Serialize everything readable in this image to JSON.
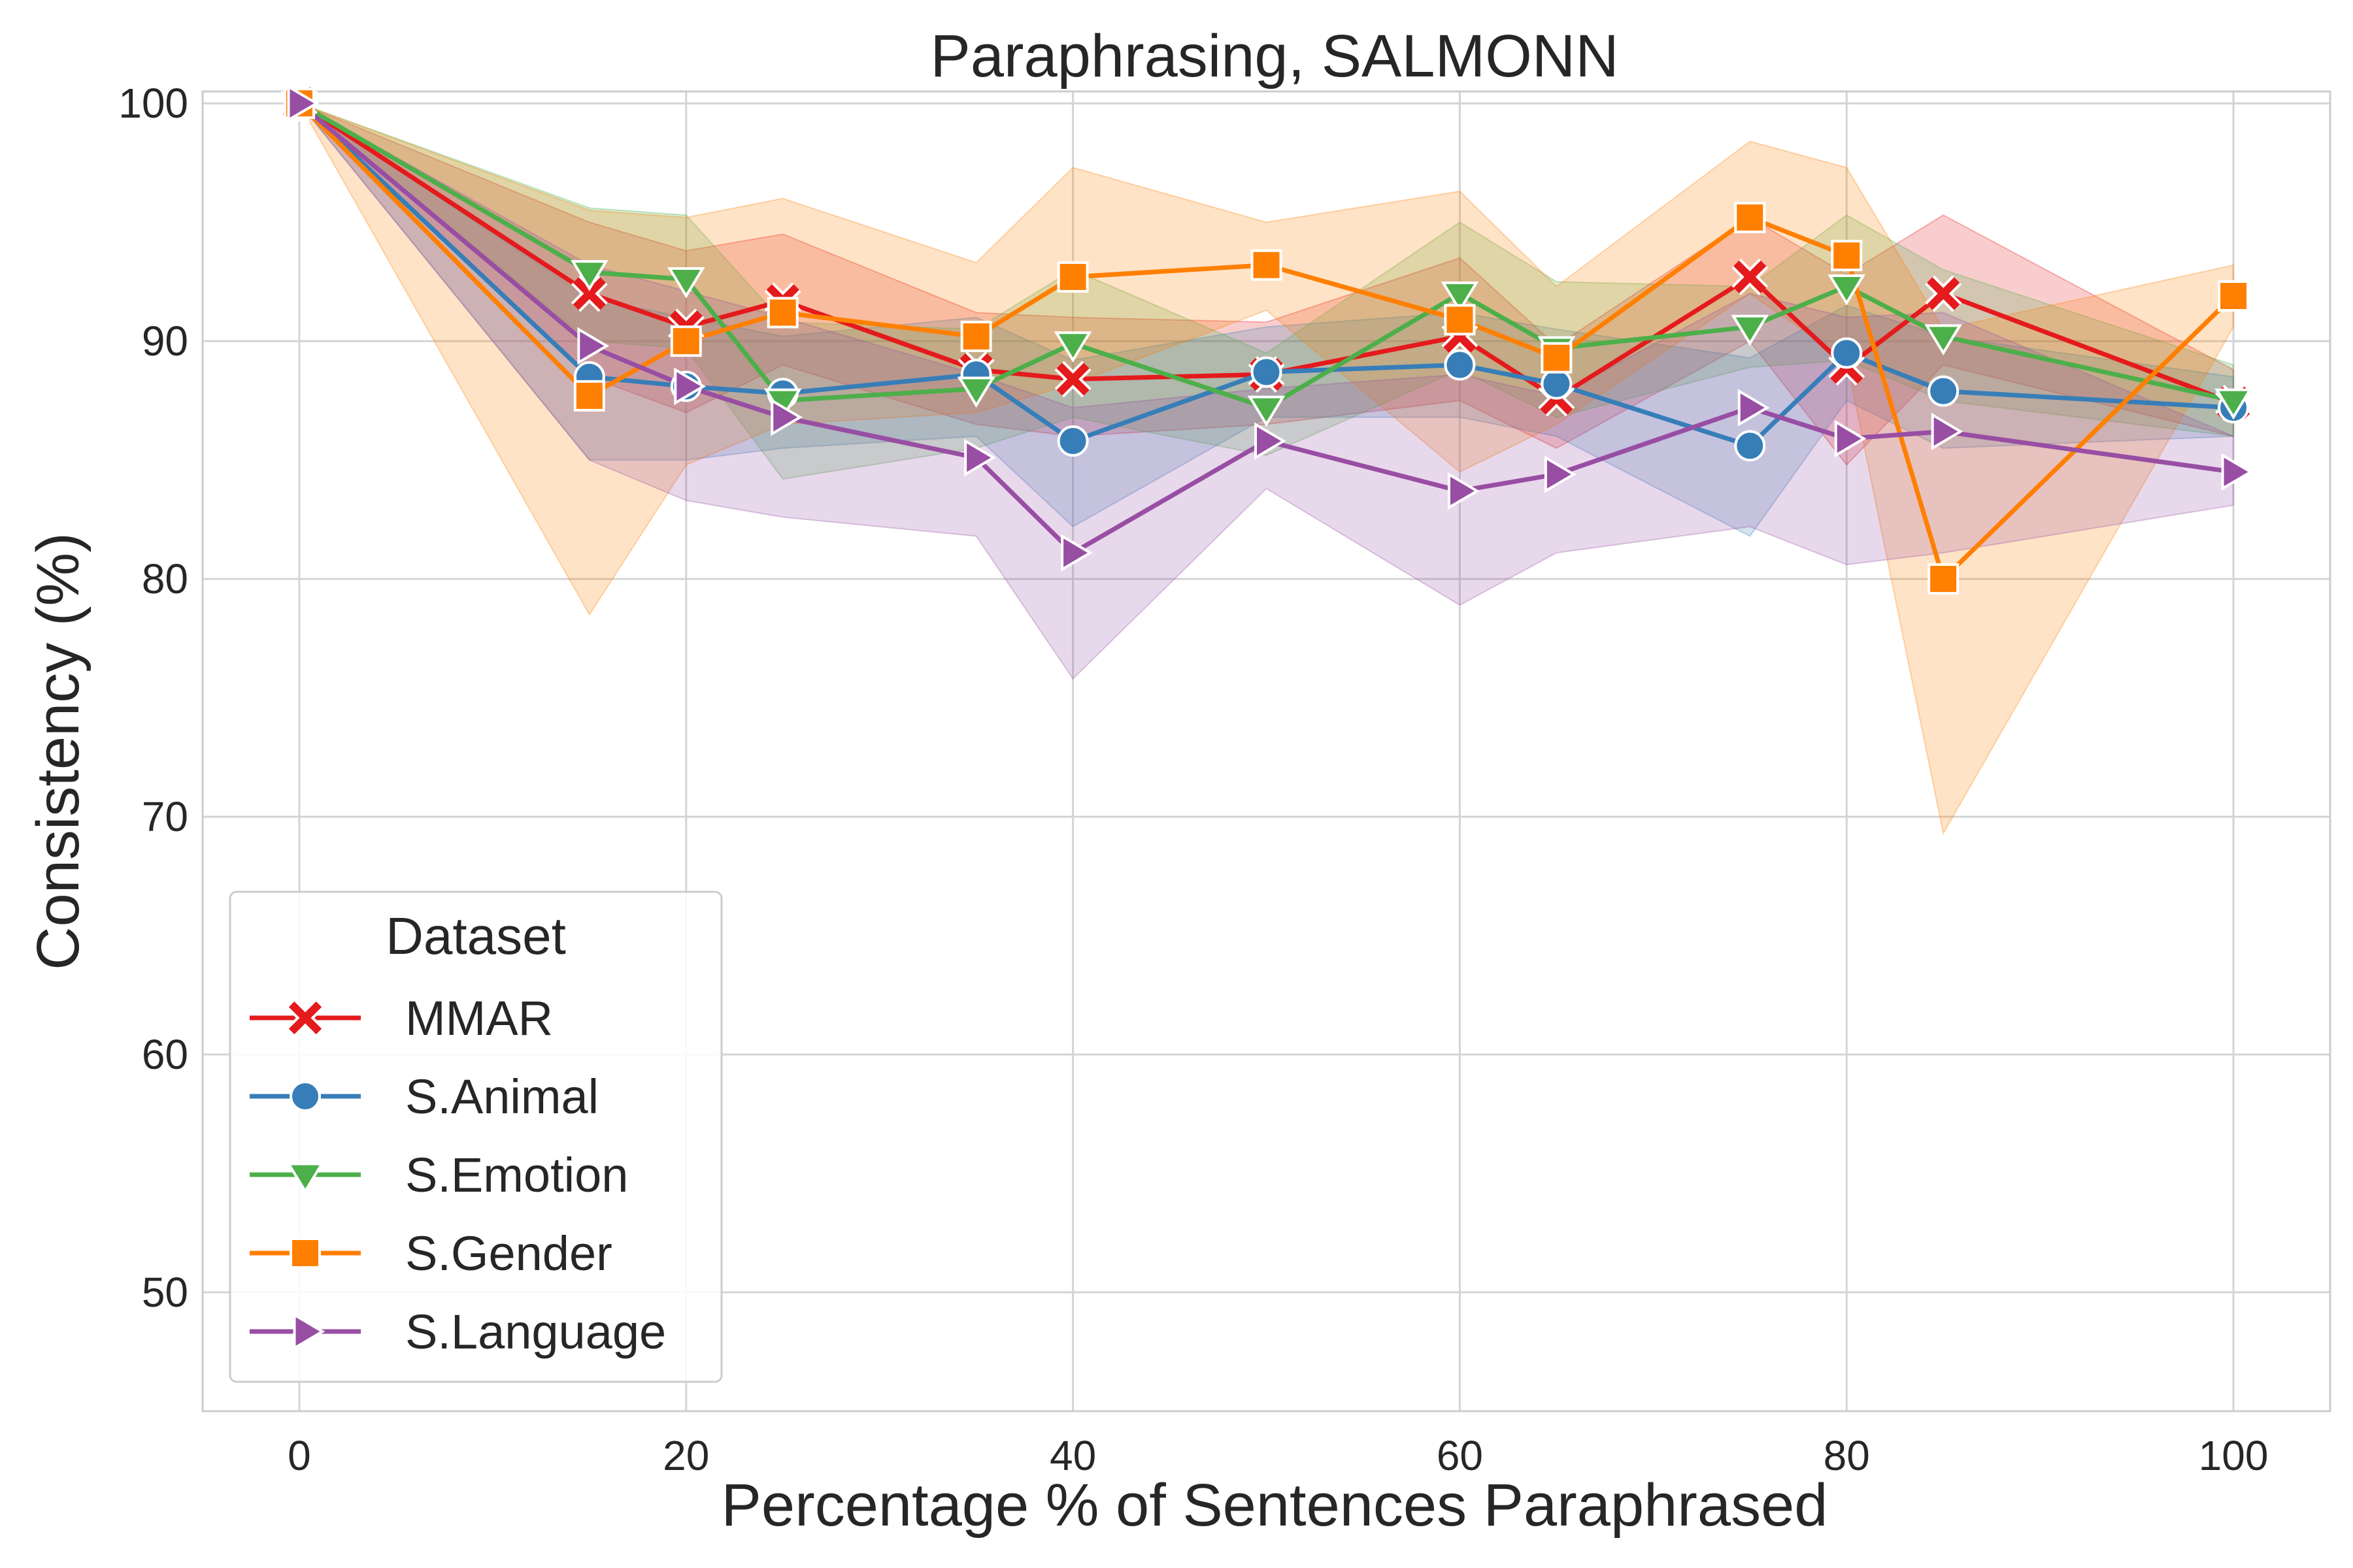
{
  "chart_data": {
    "type": "line",
    "title": "Paraphrasing, SALMONN",
    "xlabel": "Percentage % of Sentences Paraphrased",
    "ylabel": "Consistency (%)",
    "xlim": [
      -5,
      105
    ],
    "ylim": [
      45,
      100.5
    ],
    "xticks": [
      0,
      20,
      40,
      60,
      80,
      100
    ],
    "yticks": [
      50,
      60,
      70,
      80,
      90,
      100
    ],
    "grid": true,
    "legend": {
      "title": "Dataset",
      "placement": "lower-left"
    },
    "series": [
      {
        "name": "MMAR",
        "color": "#e41a1c",
        "marker": "x",
        "x": [
          0,
          15,
          20,
          25,
          35,
          40,
          50,
          60,
          65,
          75,
          80,
          85,
          100
        ],
        "y": [
          100,
          92.0,
          90.6,
          91.7,
          88.8,
          88.4,
          88.6,
          90.2,
          87.6,
          92.7,
          88.9,
          92.0,
          87.4
        ],
        "lower": [
          100,
          88.5,
          87.0,
          89.0,
          86.5,
          86.0,
          86.5,
          87.5,
          85.5,
          90.0,
          84.8,
          89.0,
          86.0
        ],
        "upper": [
          100,
          95.0,
          93.8,
          94.5,
          91.2,
          91.0,
          90.8,
          93.5,
          89.8,
          95.2,
          92.8,
          95.3,
          88.8
        ]
      },
      {
        "name": "S.Animal",
        "color": "#377eb8",
        "marker": "o",
        "x": [
          0,
          15,
          20,
          25,
          35,
          40,
          50,
          60,
          65,
          75,
          80,
          85,
          100
        ],
        "y": [
          100,
          88.5,
          88.1,
          87.8,
          88.6,
          85.8,
          88.7,
          89.0,
          88.2,
          85.6,
          89.5,
          87.9,
          87.2
        ],
        "lower": [
          100,
          85.0,
          85.0,
          85.5,
          86.0,
          82.2,
          86.8,
          86.8,
          86.0,
          81.8,
          87.5,
          85.5,
          86.0
        ],
        "upper": [
          100,
          91.8,
          91.0,
          90.2,
          91.0,
          89.2,
          90.6,
          91.2,
          90.5,
          89.3,
          91.5,
          90.2,
          88.5
        ]
      },
      {
        "name": "S.Emotion",
        "color": "#4daf4a",
        "marker": "v",
        "x": [
          0,
          15,
          20,
          25,
          35,
          40,
          50,
          60,
          65,
          75,
          80,
          85,
          100
        ],
        "y": [
          100,
          92.9,
          92.6,
          87.5,
          88.0,
          89.9,
          87.2,
          92.0,
          89.7,
          90.6,
          92.3,
          90.2,
          87.5
        ],
        "lower": [
          100,
          90.0,
          89.7,
          84.2,
          85.5,
          86.8,
          85.2,
          88.8,
          86.8,
          88.9,
          89.2,
          87.5,
          86.0
        ],
        "upper": [
          100,
          95.6,
          95.3,
          90.8,
          90.5,
          93.0,
          89.5,
          95.0,
          92.5,
          92.3,
          95.3,
          93.0,
          89.0
        ]
      },
      {
        "name": "S.Gender",
        "color": "#ff7f00",
        "marker": "s",
        "x": [
          0,
          15,
          20,
          25,
          35,
          40,
          50,
          60,
          65,
          75,
          80,
          85,
          100
        ],
        "y": [
          100,
          87.7,
          90.0,
          91.2,
          90.2,
          92.7,
          93.2,
          90.9,
          89.3,
          95.2,
          93.6,
          80.0,
          91.9
        ],
        "lower": [
          100,
          78.5,
          84.8,
          86.5,
          87.0,
          88.2,
          91.3,
          84.5,
          86.5,
          92.0,
          89.2,
          69.3,
          90.6
        ],
        "upper": [
          100,
          95.5,
          95.2,
          96.0,
          93.3,
          97.3,
          95.0,
          96.3,
          92.3,
          98.4,
          97.3,
          90.5,
          93.2
        ]
      },
      {
        "name": "S.Language",
        "color": "#984ea3",
        "marker": ">",
        "x": [
          0,
          15,
          20,
          25,
          35,
          40,
          50,
          60,
          65,
          75,
          80,
          85,
          100
        ],
        "y": [
          100,
          89.8,
          88.1,
          86.8,
          85.1,
          81.1,
          85.8,
          83.7,
          84.4,
          87.2,
          85.9,
          86.2,
          84.5
        ],
        "lower": [
          100,
          85.0,
          83.3,
          82.6,
          81.8,
          75.8,
          83.8,
          78.9,
          81.1,
          82.2,
          80.6,
          81.1,
          83.1
        ],
        "upper": [
          100,
          93.2,
          92.1,
          91.0,
          88.6,
          87.2,
          88.0,
          88.6,
          87.7,
          92.0,
          91.0,
          91.2,
          86.0
        ]
      }
    ]
  }
}
